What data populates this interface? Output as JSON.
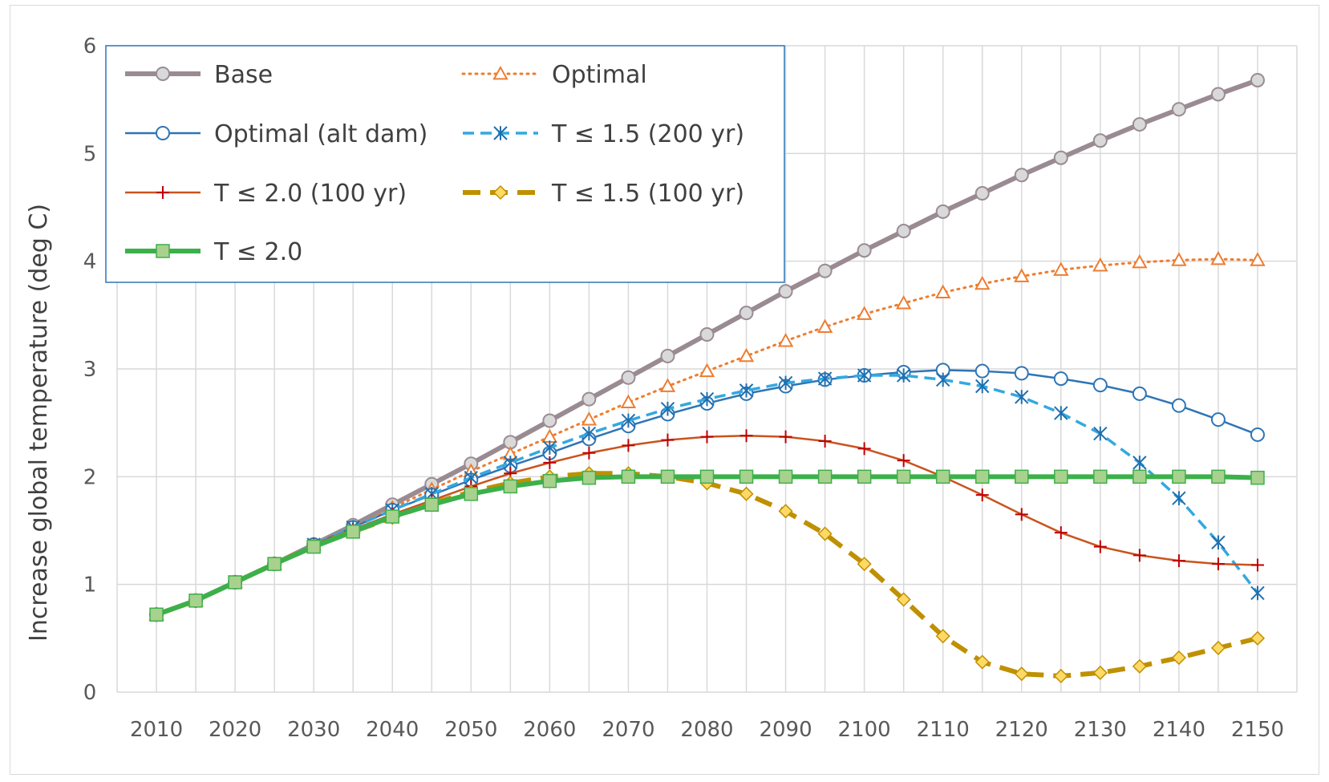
{
  "chart_data": {
    "type": "line",
    "title": "",
    "xlabel": "",
    "ylabel": "Increase global temperature (deg C)",
    "xlim": [
      2005,
      2155
    ],
    "ylim": [
      0,
      6
    ],
    "x_ticks": [
      2010,
      2020,
      2030,
      2040,
      2050,
      2060,
      2070,
      2080,
      2090,
      2100,
      2110,
      2120,
      2130,
      2140,
      2150
    ],
    "y_ticks": [
      0,
      1,
      2,
      3,
      4,
      5,
      6
    ],
    "grid": true,
    "legend_position": "top-left",
    "x": [
      2010,
      2015,
      2020,
      2025,
      2030,
      2035,
      2040,
      2045,
      2050,
      2055,
      2060,
      2065,
      2070,
      2075,
      2080,
      2085,
      2090,
      2095,
      2100,
      2105,
      2110,
      2115,
      2120,
      2125,
      2130,
      2135,
      2140,
      2145,
      2150
    ],
    "series": [
      {
        "name": "Base",
        "color": "#9a8b93",
        "marker": "circle",
        "dash": "solid",
        "values": [
          0.72,
          0.85,
          1.02,
          1.19,
          1.37,
          1.55,
          1.74,
          1.93,
          2.12,
          2.32,
          2.52,
          2.72,
          2.92,
          3.12,
          3.32,
          3.52,
          3.72,
          3.91,
          4.1,
          4.28,
          4.46,
          4.63,
          4.8,
          4.96,
          5.12,
          5.27,
          5.41,
          5.55,
          5.68
        ]
      },
      {
        "name": "Optimal",
        "color": "#ed7d31",
        "marker": "triangle",
        "dash": "dotted",
        "values": [
          0.72,
          0.85,
          1.02,
          1.19,
          1.37,
          1.53,
          1.71,
          1.88,
          2.05,
          2.21,
          2.37,
          2.53,
          2.69,
          2.84,
          2.98,
          3.12,
          3.26,
          3.39,
          3.51,
          3.61,
          3.71,
          3.79,
          3.86,
          3.92,
          3.96,
          3.99,
          4.01,
          4.02,
          4.01
        ]
      },
      {
        "name": "Optimal (alt dam)",
        "color": "#2e75b6",
        "marker": "circle",
        "dash": "solid",
        "values": [
          0.72,
          0.85,
          1.02,
          1.19,
          1.37,
          1.53,
          1.69,
          1.83,
          1.97,
          2.1,
          2.22,
          2.35,
          2.47,
          2.58,
          2.68,
          2.77,
          2.84,
          2.9,
          2.94,
          2.97,
          2.99,
          2.98,
          2.96,
          2.91,
          2.85,
          2.77,
          2.66,
          2.53,
          2.39
        ]
      },
      {
        "name": "T ≤ 1.5 (200 yr)",
        "color": "#33a8e0",
        "marker": "asterisk",
        "dash": "dashed",
        "values": [
          0.72,
          0.85,
          1.02,
          1.19,
          1.37,
          1.53,
          1.69,
          1.84,
          1.99,
          2.13,
          2.27,
          2.4,
          2.52,
          2.63,
          2.72,
          2.8,
          2.87,
          2.91,
          2.94,
          2.94,
          2.9,
          2.84,
          2.74,
          2.59,
          2.4,
          2.13,
          1.8,
          1.39,
          0.92
        ]
      },
      {
        "name": "T ≤ 2.0 (100 yr)",
        "color": "#c9541f",
        "marker": "plus",
        "dash": "solid",
        "values": [
          0.72,
          0.85,
          1.02,
          1.19,
          1.37,
          1.51,
          1.65,
          1.78,
          1.91,
          2.03,
          2.13,
          2.22,
          2.29,
          2.34,
          2.37,
          2.38,
          2.37,
          2.33,
          2.26,
          2.15,
          2.0,
          1.83,
          1.65,
          1.48,
          1.35,
          1.27,
          1.22,
          1.19,
          1.18
        ]
      },
      {
        "name": "T ≤ 1.5 (100 yr)",
        "color": "#bf9000",
        "marker": "diamond",
        "dash": "dashed",
        "values": [
          0.72,
          0.85,
          1.02,
          1.19,
          1.36,
          1.49,
          1.62,
          1.75,
          1.86,
          1.94,
          2.0,
          2.03,
          2.03,
          2.0,
          1.94,
          1.84,
          1.68,
          1.47,
          1.19,
          0.86,
          0.52,
          0.28,
          0.17,
          0.15,
          0.18,
          0.24,
          0.32,
          0.41,
          0.5
        ]
      },
      {
        "name": "T ≤ 2.0",
        "color": "#3cb04a",
        "marker": "square",
        "dash": "solid",
        "values": [
          0.72,
          0.85,
          1.02,
          1.19,
          1.35,
          1.49,
          1.63,
          1.74,
          1.84,
          1.91,
          1.96,
          1.99,
          2.0,
          2.0,
          2.0,
          2.0,
          2.0,
          2.0,
          2.0,
          2.0,
          2.0,
          2.0,
          2.0,
          2.0,
          2.0,
          2.0,
          2.0,
          2.0,
          1.99
        ]
      }
    ]
  }
}
